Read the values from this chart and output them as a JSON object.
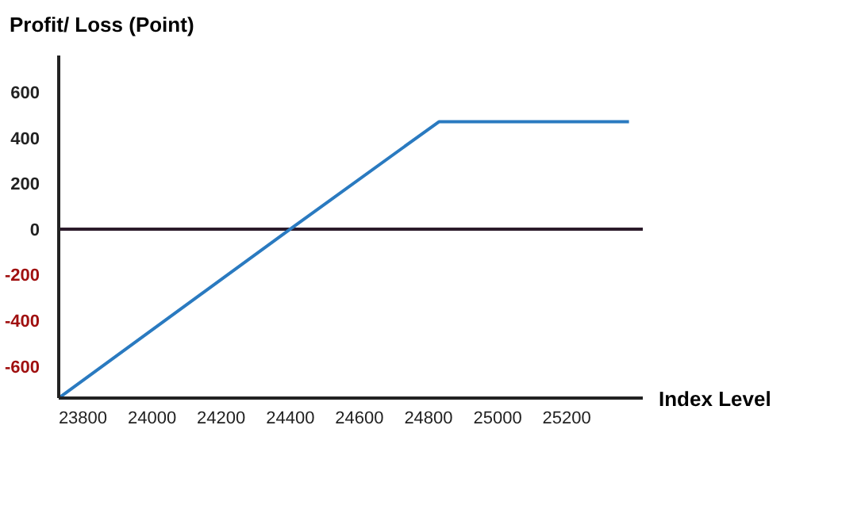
{
  "chart_data": {
    "type": "line",
    "ylabel": "Profit/ Loss (Point)",
    "xlabel": "Index Level",
    "x": [
      23730,
      24400,
      24830,
      25380
    ],
    "series": [
      {
        "color": "#2a7ac0",
        "values": [
          -740,
          0,
          470,
          470
        ]
      }
    ],
    "xlim": [
      23730,
      25420
    ],
    "xticks": [
      23800,
      24000,
      24200,
      24400,
      24600,
      24800,
      25000,
      25200
    ],
    "ylim": [
      -740,
      760
    ],
    "yticks": [
      -600,
      -400,
      -200,
      0,
      200,
      400,
      600
    ],
    "ref_lines": [
      {
        "axis": "y",
        "value": 0,
        "color": "#2b1a2a"
      }
    ],
    "grid": false,
    "legend": false,
    "marker": "none",
    "line_style": "solid"
  }
}
